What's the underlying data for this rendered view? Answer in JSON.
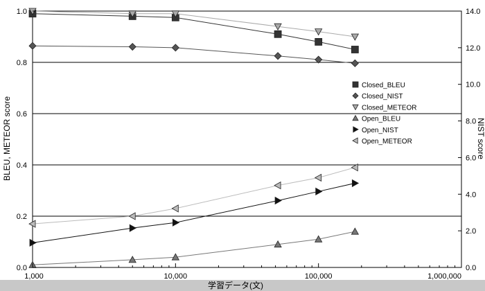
{
  "chart_data": {
    "type": "line",
    "xlabel": "学習データ(文)",
    "ylabel": "BLEU, METEOR score",
    "y2label": "NIST score",
    "x_scale": "log",
    "xlim": [
      1000,
      1000000
    ],
    "ylim": [
      0.0,
      1.0
    ],
    "y2lim": [
      0.0,
      14.0
    ],
    "x_ticks": [
      1000,
      10000,
      100000,
      1000000
    ],
    "x_tick_labels": [
      "1,000",
      "10,000",
      "100,000",
      "1,000,000"
    ],
    "y_ticks": [
      0.0,
      0.2,
      0.4,
      0.6,
      0.8,
      1.0
    ],
    "y_tick_labels": [
      "0.0",
      "0.2",
      "0.4",
      "0.6",
      "0.8",
      "1.0"
    ],
    "y2_ticks": [
      0,
      2,
      4,
      6,
      8,
      10,
      12,
      14
    ],
    "y2_tick_labels": [
      "0.0",
      "2.0",
      "4.0",
      "6.0",
      "8.0",
      "10.0",
      "12.0",
      "14.0"
    ],
    "grid": "horizontal",
    "legend_position": "right-middle",
    "series": [
      {
        "name": "Closed_BLEU",
        "axis": "left",
        "marker": "square",
        "color": "#333333",
        "x": [
          1000,
          5000,
          10000,
          52000,
          100000,
          180000
        ],
        "y": [
          0.99,
          0.98,
          0.975,
          0.91,
          0.88,
          0.85
        ]
      },
      {
        "name": "Closed_NIST",
        "axis": "right",
        "marker": "diamond",
        "color": "#555555",
        "x": [
          1000,
          5000,
          10000,
          52000,
          100000,
          180000
        ],
        "y": [
          12.1,
          12.05,
          12.0,
          11.55,
          11.35,
          11.15
        ]
      },
      {
        "name": "Closed_METEOR",
        "axis": "left",
        "marker": "triangle-down",
        "color": "#aaaaaa",
        "x": [
          1000,
          5000,
          10000,
          52000,
          100000,
          180000
        ],
        "y": [
          1.0,
          0.99,
          0.99,
          0.94,
          0.92,
          0.9
        ]
      },
      {
        "name": "Open_BLEU",
        "axis": "left",
        "marker": "triangle-up",
        "color": "#777777",
        "x": [
          1000,
          5000,
          10000,
          52000,
          100000,
          180000
        ],
        "y": [
          0.01,
          0.03,
          0.04,
          0.09,
          0.11,
          0.14
        ]
      },
      {
        "name": "Open_NIST",
        "axis": "right",
        "marker": "triangle-right",
        "color": "#111111",
        "x": [
          1000,
          5000,
          10000,
          52000,
          100000,
          180000
        ],
        "y": [
          1.35,
          2.15,
          2.45,
          3.65,
          4.15,
          4.6
        ]
      },
      {
        "name": "Open_METEOR",
        "axis": "left",
        "marker": "triangle-left",
        "color": "#bbbbbb",
        "x": [
          1000,
          5000,
          10000,
          52000,
          100000,
          180000
        ],
        "y": [
          0.17,
          0.2,
          0.23,
          0.32,
          0.35,
          0.39
        ]
      }
    ]
  }
}
